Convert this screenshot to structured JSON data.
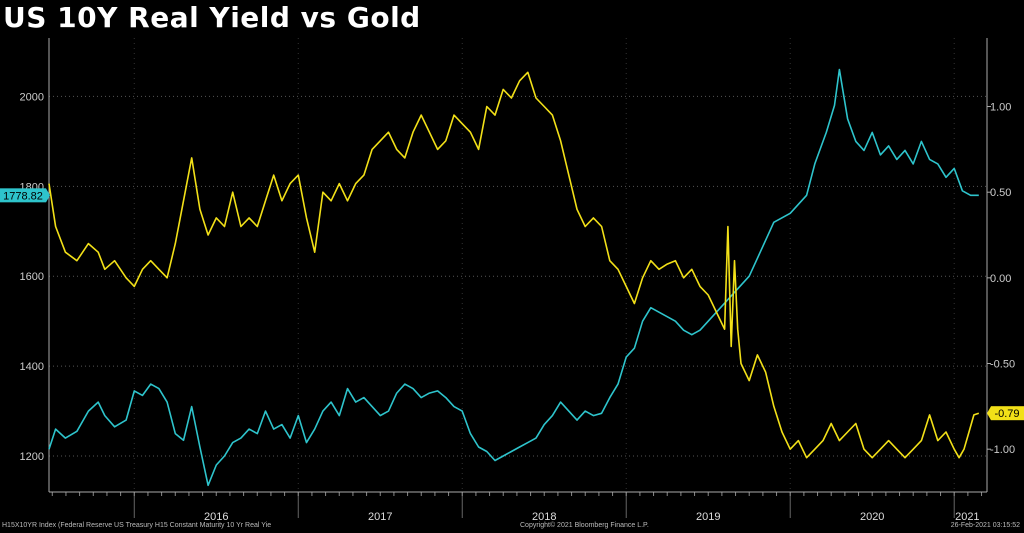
{
  "chart_data": {
    "type": "line",
    "title": "US 10Y Real Yield vs Gold",
    "x_tick_labels": [
      "2016",
      "2017",
      "2018",
      "2019",
      "2020",
      "2021"
    ],
    "left_axis": {
      "ticks": [
        "1200",
        "1400",
        "1600",
        "1800",
        "2000"
      ],
      "range": [
        1120,
        2130
      ]
    },
    "right_axis": {
      "ticks": [
        "-1.00",
        "-0.50",
        "0.00",
        "0.50",
        "1.00"
      ],
      "range": [
        -1.25,
        1.4
      ]
    },
    "grid": true,
    "series": [
      {
        "axis": "left",
        "color": "#2ec4cc",
        "last_value_label": "1778.82",
        "x": [
          2015.48,
          2015.52,
          2015.58,
          2015.65,
          2015.72,
          2015.78,
          2015.82,
          2015.88,
          2015.95,
          2016.0,
          2016.05,
          2016.1,
          2016.15,
          2016.2,
          2016.25,
          2016.3,
          2016.35,
          2016.4,
          2016.45,
          2016.5,
          2016.55,
          2016.6,
          2016.65,
          2016.7,
          2016.75,
          2016.8,
          2016.85,
          2016.9,
          2016.95,
          2017.0,
          2017.05,
          2017.1,
          2017.15,
          2017.2,
          2017.25,
          2017.3,
          2017.35,
          2017.4,
          2017.45,
          2017.5,
          2017.55,
          2017.6,
          2017.65,
          2017.7,
          2017.75,
          2017.8,
          2017.85,
          2017.9,
          2017.95,
          2018.0,
          2018.05,
          2018.1,
          2018.15,
          2018.2,
          2018.25,
          2018.3,
          2018.35,
          2018.4,
          2018.45,
          2018.5,
          2018.55,
          2018.6,
          2018.65,
          2018.7,
          2018.75,
          2018.8,
          2018.85,
          2018.9,
          2018.95,
          2019.0,
          2019.05,
          2019.1,
          2019.15,
          2019.2,
          2019.25,
          2019.3,
          2019.35,
          2019.4,
          2019.45,
          2019.5,
          2019.55,
          2019.6,
          2019.65,
          2019.7,
          2019.75,
          2019.8,
          2019.85,
          2019.9,
          2019.95,
          2020.0,
          2020.05,
          2020.1,
          2020.15,
          2020.18,
          2020.22,
          2020.27,
          2020.3,
          2020.35,
          2020.4,
          2020.45,
          2020.5,
          2020.55,
          2020.6,
          2020.65,
          2020.7,
          2020.75,
          2020.8,
          2020.85,
          2020.9,
          2020.95,
          2021.0,
          2021.05,
          2021.1,
          2021.15
        ],
        "y": [
          1215,
          1260,
          1240,
          1255,
          1300,
          1320,
          1290,
          1265,
          1280,
          1345,
          1335,
          1360,
          1350,
          1320,
          1250,
          1235,
          1310,
          1220,
          1135,
          1180,
          1200,
          1230,
          1240,
          1260,
          1250,
          1300,
          1260,
          1270,
          1240,
          1290,
          1230,
          1260,
          1300,
          1320,
          1290,
          1350,
          1320,
          1330,
          1310,
          1290,
          1300,
          1340,
          1360,
          1350,
          1330,
          1340,
          1345,
          1330,
          1310,
          1300,
          1250,
          1220,
          1210,
          1190,
          1200,
          1210,
          1220,
          1230,
          1240,
          1270,
          1290,
          1320,
          1300,
          1280,
          1300,
          1290,
          1295,
          1330,
          1360,
          1420,
          1440,
          1500,
          1530,
          1520,
          1510,
          1500,
          1480,
          1470,
          1480,
          1500,
          1520,
          1540,
          1560,
          1580,
          1600,
          1640,
          1680,
          1720,
          1730,
          1740,
          1760,
          1780,
          1850,
          1880,
          1920,
          1980,
          2060,
          1950,
          1900,
          1880,
          1920,
          1870,
          1890,
          1860,
          1880,
          1850,
          1900,
          1860,
          1850,
          1820,
          1840,
          1790,
          1780,
          1780
        ]
      },
      {
        "axis": "right",
        "color": "#f2e018",
        "last_value_label": "-0.79",
        "x": [
          2015.48,
          2015.52,
          2015.58,
          2015.65,
          2015.72,
          2015.78,
          2015.82,
          2015.88,
          2015.95,
          2016.0,
          2016.05,
          2016.1,
          2016.15,
          2016.2,
          2016.25,
          2016.3,
          2016.35,
          2016.4,
          2016.45,
          2016.5,
          2016.55,
          2016.6,
          2016.65,
          2016.7,
          2016.75,
          2016.8,
          2016.85,
          2016.9,
          2016.95,
          2017.0,
          2017.05,
          2017.1,
          2017.15,
          2017.2,
          2017.25,
          2017.3,
          2017.35,
          2017.4,
          2017.45,
          2017.5,
          2017.55,
          2017.6,
          2017.65,
          2017.7,
          2017.75,
          2017.8,
          2017.85,
          2017.9,
          2017.95,
          2018.0,
          2018.05,
          2018.1,
          2018.15,
          2018.2,
          2018.25,
          2018.3,
          2018.35,
          2018.4,
          2018.45,
          2018.5,
          2018.55,
          2018.6,
          2018.65,
          2018.7,
          2018.75,
          2018.8,
          2018.85,
          2018.9,
          2018.95,
          2019.0,
          2019.05,
          2019.1,
          2019.15,
          2019.2,
          2019.25,
          2019.3,
          2019.35,
          2019.4,
          2019.45,
          2019.5,
          2019.55,
          2019.6,
          2019.62,
          2019.64,
          2019.66,
          2019.68,
          2019.7,
          2019.75,
          2019.8,
          2019.85,
          2019.9,
          2019.95,
          2020.0,
          2020.05,
          2020.1,
          2020.15,
          2020.2,
          2020.25,
          2020.3,
          2020.35,
          2020.4,
          2020.45,
          2020.5,
          2020.55,
          2020.6,
          2020.65,
          2020.7,
          2020.75,
          2020.8,
          2020.85,
          2020.9,
          2020.95,
          2021.0,
          2021.03,
          2021.06,
          2021.09,
          2021.12,
          2021.15
        ],
        "y": [
          0.55,
          0.3,
          0.15,
          0.1,
          0.2,
          0.15,
          0.05,
          0.1,
          0.0,
          -0.05,
          0.05,
          0.1,
          0.05,
          0.0,
          0.2,
          0.45,
          0.7,
          0.4,
          0.25,
          0.35,
          0.3,
          0.5,
          0.3,
          0.35,
          0.3,
          0.45,
          0.6,
          0.45,
          0.55,
          0.6,
          0.35,
          0.15,
          0.5,
          0.45,
          0.55,
          0.45,
          0.55,
          0.6,
          0.75,
          0.8,
          0.85,
          0.75,
          0.7,
          0.85,
          0.95,
          0.85,
          0.75,
          0.8,
          0.95,
          0.9,
          0.85,
          0.75,
          1.0,
          0.95,
          1.1,
          1.05,
          1.15,
          1.2,
          1.05,
          1.0,
          0.95,
          0.8,
          0.6,
          0.4,
          0.3,
          0.35,
          0.3,
          0.1,
          0.05,
          -0.05,
          -0.15,
          0.0,
          0.1,
          0.05,
          0.08,
          0.1,
          0.0,
          0.05,
          -0.05,
          -0.1,
          -0.2,
          -0.3,
          0.3,
          -0.4,
          0.1,
          -0.3,
          -0.5,
          -0.6,
          -0.45,
          -0.55,
          -0.75,
          -0.9,
          -1.0,
          -0.95,
          -1.05,
          -1.0,
          -0.95,
          -0.85,
          -0.95,
          -0.9,
          -0.85,
          -1.0,
          -1.05,
          -1.0,
          -0.95,
          -1.0,
          -1.05,
          -1.0,
          -0.95,
          -0.8,
          -0.95,
          -0.9,
          -1.0,
          -1.05,
          -1.0,
          -0.9,
          -0.8,
          -0.79
        ]
      }
    ]
  },
  "footer": {
    "left": "H15X10YR Index (Federal Reserve US Treasury H15 Constant Maturity 10 Yr Real Yie",
    "mid": "Copyright© 2021 Bloomberg Finance L.P.",
    "right": "26-Feb-2021 03:15:52"
  }
}
